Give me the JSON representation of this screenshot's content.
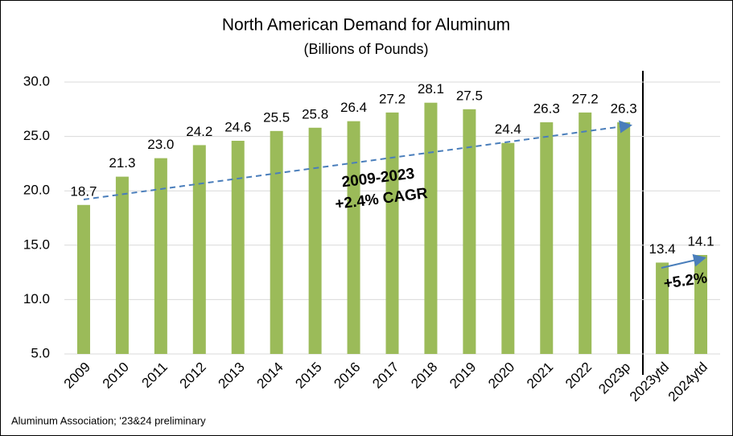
{
  "chart_data": {
    "type": "bar",
    "title": "North American Demand for Aluminum",
    "subtitle": "(Billions of Pounds)",
    "categories": [
      "2009",
      "2010",
      "2011",
      "2012",
      "2013",
      "2014",
      "2015",
      "2016",
      "2017",
      "2018",
      "2019",
      "2020",
      "2021",
      "2022",
      "2023p",
      "2023ytd",
      "2024ytd"
    ],
    "values": [
      18.7,
      21.3,
      23.0,
      24.2,
      24.6,
      25.5,
      25.8,
      26.4,
      27.2,
      28.1,
      27.5,
      24.4,
      26.3,
      27.2,
      26.3,
      13.4,
      14.1
    ],
    "value_labels": [
      "18.7",
      "21.3",
      "23.0",
      "24.2",
      "24.6",
      "25.5",
      "25.8",
      "26.4",
      "27.2",
      "28.1",
      "27.5",
      "24.4",
      "26.3",
      "27.2",
      "26.3",
      "13.4",
      "14.1"
    ],
    "color": "#9bbb59",
    "ylim": [
      5,
      30
    ],
    "yticks": [
      {
        "value": 5,
        "label": "5.0"
      },
      {
        "value": 10,
        "label": "10.0"
      },
      {
        "value": 15,
        "label": "15.0"
      },
      {
        "value": 20,
        "label": "20.0"
      },
      {
        "value": 25,
        "label": "25.0"
      },
      {
        "value": 30,
        "label": "30.0"
      }
    ],
    "grid": true,
    "annotations": [
      "2009-2023",
      "+2.4% CAGR",
      "+5.2%"
    ],
    "source": "Aluminum Association; '23&24 preliminary"
  }
}
